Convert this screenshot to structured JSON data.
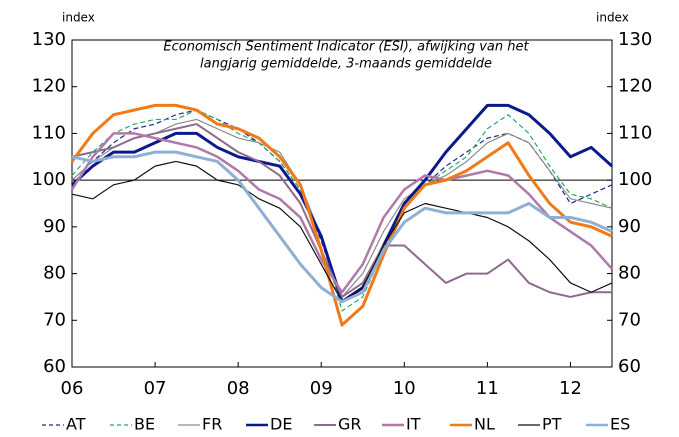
{
  "chart_data": {
    "type": "line",
    "title": "Economisch Sentiment Indicator (ESI),  afwijking van het",
    "subtitle": "langjarig gemiddelde,  3-maands gemiddelde",
    "y_label": "index",
    "y2_label": "index",
    "x": [
      2006,
      2006.25,
      2006.5,
      2006.75,
      2007,
      2007.25,
      2007.5,
      2007.75,
      2008,
      2008.25,
      2008.5,
      2008.75,
      2009,
      2009.25,
      2009.5,
      2009.75,
      2010,
      2010.25,
      2010.5,
      2010.75,
      2011,
      2011.25,
      2011.5,
      2011.75,
      2012,
      2012.25,
      2012.5
    ],
    "xlim": [
      2006,
      2012.5
    ],
    "xticks": [
      {
        "value": 2006,
        "label": "06"
      },
      {
        "value": 2007,
        "label": "07"
      },
      {
        "value": 2008,
        "label": "08"
      },
      {
        "value": 2009,
        "label": "09"
      },
      {
        "value": 2010,
        "label": "10"
      },
      {
        "value": 2011,
        "label": "11"
      },
      {
        "value": 2012,
        "label": "12"
      }
    ],
    "ylim": [
      60,
      130
    ],
    "yticks": [
      60,
      70,
      80,
      90,
      100,
      110,
      120,
      130
    ],
    "y2lim": [
      60,
      130
    ],
    "y2ticks": [
      60,
      70,
      80,
      90,
      100,
      110,
      120,
      130
    ],
    "reference_line": 100,
    "series": [
      {
        "name": "AT",
        "color": "#1f2a8c",
        "dashed": true,
        "width": 1.2,
        "values": [
          100,
          104,
          108,
          111,
          112,
          114,
          115,
          113,
          111,
          108,
          104,
          98,
          87,
          74,
          76,
          86,
          94,
          99,
          103,
          106,
          109,
          110,
          108,
          102,
          95,
          97,
          99
        ]
      },
      {
        "name": "BE",
        "color": "#2aa86a",
        "dashed": true,
        "width": 1.2,
        "values": [
          101,
          106,
          110,
          112,
          113,
          113,
          115,
          113,
          110,
          108,
          104,
          98,
          88,
          72,
          75,
          85,
          94,
          99,
          102,
          105,
          111,
          114,
          110,
          103,
          97,
          96,
          94
        ]
      },
      {
        "name": "FR",
        "color": "#8c8c8c",
        "dashed": false,
        "width": 1.2,
        "values": [
          100,
          104,
          107,
          109,
          110,
          112,
          113,
          111,
          109,
          108,
          106,
          99,
          88,
          75,
          80,
          89,
          96,
          99,
          101,
          104,
          108,
          110,
          108,
          102,
          96,
          95,
          94
        ]
      },
      {
        "name": "DE",
        "color": "#0a1a8c",
        "dashed": false,
        "width": 3,
        "values": [
          99,
          103,
          106,
          106,
          108,
          110,
          110,
          107,
          105,
          104,
          103,
          97,
          88,
          74,
          77,
          86,
          95,
          100,
          106,
          111,
          116,
          116,
          114,
          110,
          105,
          107,
          103
        ]
      },
      {
        "name": "GR",
        "color": "#8e6a8e",
        "dashed": false,
        "width": 2,
        "values": [
          105,
          106,
          107,
          109,
          110,
          111,
          112,
          109,
          106,
          104,
          101,
          95,
          85,
          75,
          78,
          86,
          86,
          82,
          78,
          80,
          80,
          83,
          78,
          76,
          75,
          76,
          76
        ]
      },
      {
        "name": "IT",
        "color": "#b07aa8",
        "dashed": false,
        "width": 2.5,
        "values": [
          98,
          105,
          110,
          110,
          109,
          108,
          107,
          105,
          102,
          98,
          96,
          92,
          83,
          76,
          82,
          92,
          98,
          101,
          100,
          101,
          102,
          101,
          97,
          92,
          89,
          86,
          81
        ]
      },
      {
        "name": "NL",
        "color": "#f07a18",
        "dashed": false,
        "width": 3,
        "values": [
          104,
          110,
          114,
          115,
          116,
          116,
          115,
          112,
          111,
          109,
          105,
          99,
          85,
          69,
          73,
          84,
          94,
          99,
          100,
          102,
          105,
          108,
          101,
          95,
          91,
          90,
          88
        ]
      },
      {
        "name": "PT",
        "color": "#111111",
        "dashed": false,
        "width": 1.2,
        "values": [
          97,
          96,
          99,
          100,
          103,
          104,
          103,
          100,
          99,
          96,
          94,
          90,
          82,
          74,
          77,
          86,
          93,
          95,
          94,
          93,
          92,
          90,
          87,
          83,
          78,
          76,
          78
        ]
      },
      {
        "name": "ES",
        "color": "#8fb0d4",
        "dashed": false,
        "width": 3,
        "values": [
          105,
          104,
          105,
          105,
          106,
          106,
          105,
          104,
          100,
          94,
          88,
          82,
          77,
          74,
          76,
          85,
          91,
          94,
          93,
          93,
          93,
          93,
          95,
          92,
          92,
          91,
          89
        ]
      }
    ]
  }
}
